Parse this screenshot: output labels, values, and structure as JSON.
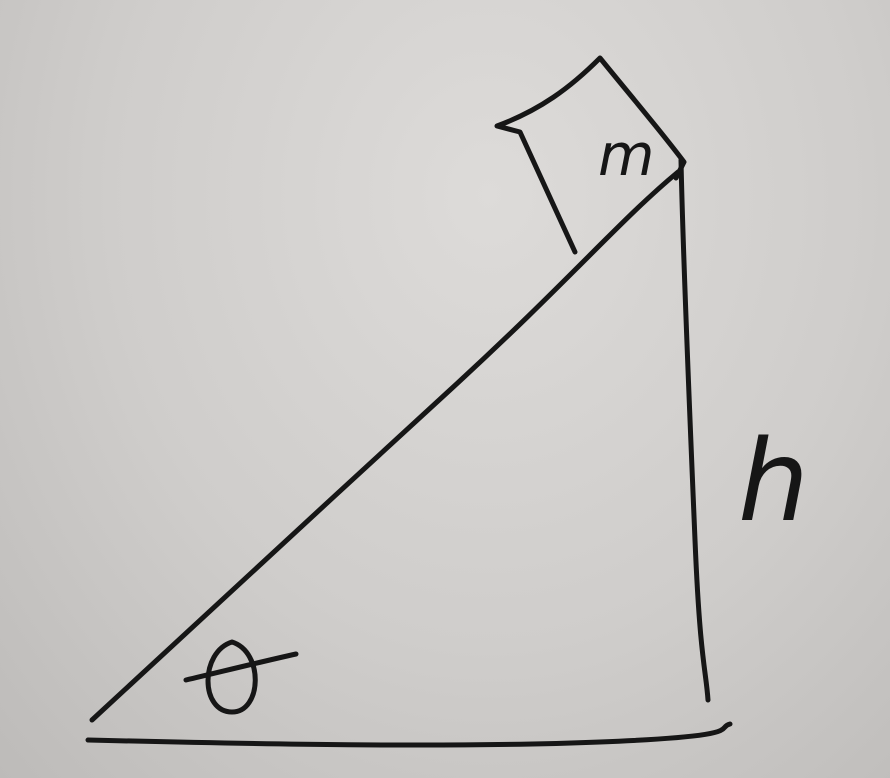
{
  "diagram": {
    "block_label": "m",
    "height_label": "h",
    "angle_label": "θ",
    "ink_color": "#161616",
    "paper_color": "#d6d4d2"
  }
}
